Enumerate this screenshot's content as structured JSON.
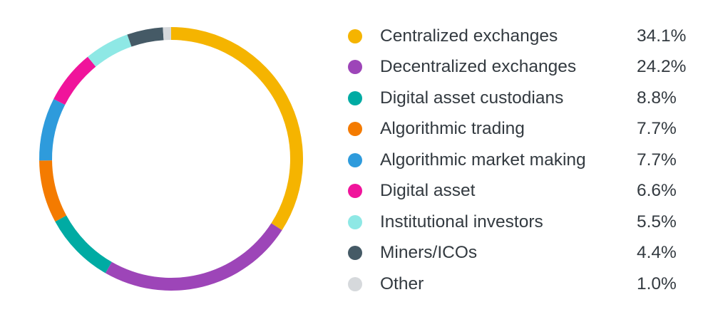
{
  "chart_data": {
    "type": "pie",
    "style": "donut",
    "legend_placement": "right",
    "slices": [
      {
        "label": "Centralized exchanges",
        "value": 34.1,
        "display": "34.1%",
        "color": "#F5B400"
      },
      {
        "label": "Decentralized exchanges",
        "value": 24.2,
        "display": "24.2%",
        "color": "#9D45B8"
      },
      {
        "label": "Digital asset custodians",
        "value": 8.8,
        "display": "8.8%",
        "color": "#00ABA3"
      },
      {
        "label": "Algorithmic trading",
        "value": 7.7,
        "display": "7.7%",
        "color": "#F47B00"
      },
      {
        "label": "Algorithmic market making",
        "value": 7.7,
        "display": "7.7%",
        "color": "#2E9BDC"
      },
      {
        "label": "Digital asset",
        "value": 6.6,
        "display": "6.6%",
        "color": "#F0149B"
      },
      {
        "label": "Institutional investors",
        "value": 5.5,
        "display": "5.5%",
        "color": "#8EE8E5"
      },
      {
        "label": "Miners/ICOs",
        "value": 4.4,
        "display": "4.4%",
        "color": "#455A66"
      },
      {
        "label": "Other",
        "value": 1.0,
        "display": "1.0%",
        "color": "#D6D9DC"
      }
    ]
  }
}
